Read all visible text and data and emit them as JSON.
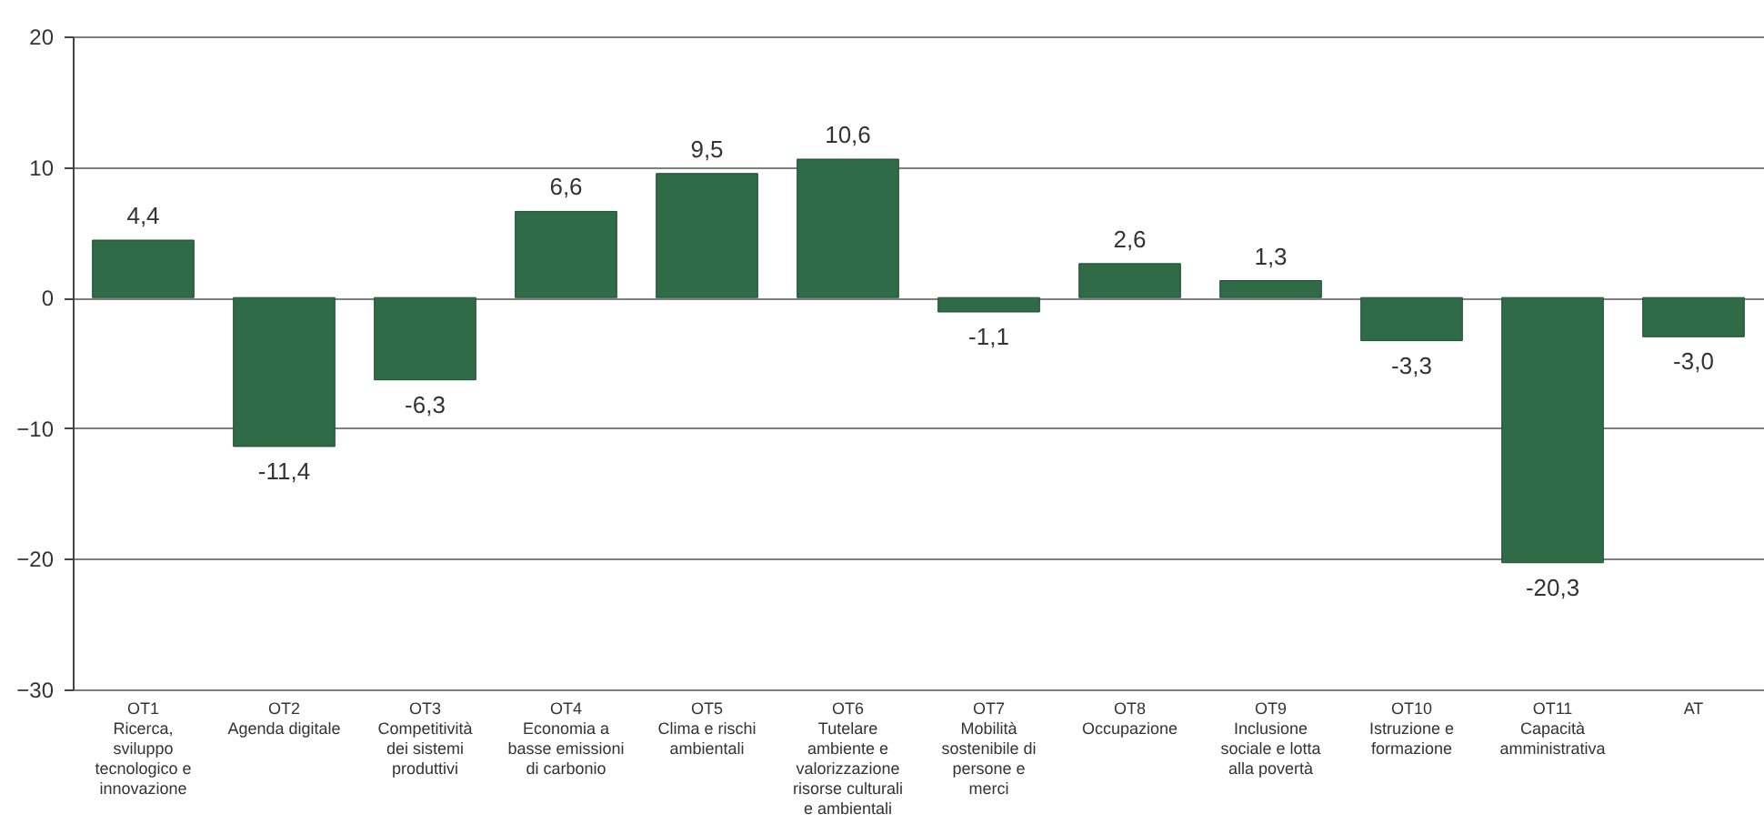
{
  "chart_data": {
    "type": "bar",
    "categories": [
      "OT1\nRicerca,\nsviluppo\ntecnologico e\ninnovazione",
      "OT2\nAgenda digitale",
      "OT3\nCompetitività\ndei sistemi\nproduttivi",
      "OT4\nEconomia a\nbasse emissioni\ndi carbonio",
      "OT5\nClima e rischi\nambientali",
      "OT6\nTutelare\nambiente e\nvalorizzazione\nrisorse culturali\ne ambientali",
      "OT7\nMobilità\nsostenibile di\npersone e\nmerci",
      "OT8\nOccupazione",
      "OT9\nInclusione\nsociale e lotta\nalla povertà",
      "OT10\nIstruzione e\nformazione",
      "OT11\nCapacità\namministrativa",
      "AT"
    ],
    "values": [
      4.4,
      -11.4,
      -6.3,
      6.6,
      9.5,
      10.6,
      -1.1,
      2.6,
      1.3,
      -3.3,
      -20.3,
      -3.0
    ],
    "value_labels": [
      "4,4",
      "-11,4",
      "-6,3",
      "6,6",
      "9,5",
      "10,6",
      "-1,1",
      "2,6",
      "1,3",
      "-3,3",
      "-20,3",
      "-3,0"
    ],
    "color": "#2f6b47",
    "ylim": [
      -30,
      20
    ],
    "yticks": [
      -30,
      -20,
      -10,
      0,
      10,
      20
    ],
    "grid": "y"
  }
}
